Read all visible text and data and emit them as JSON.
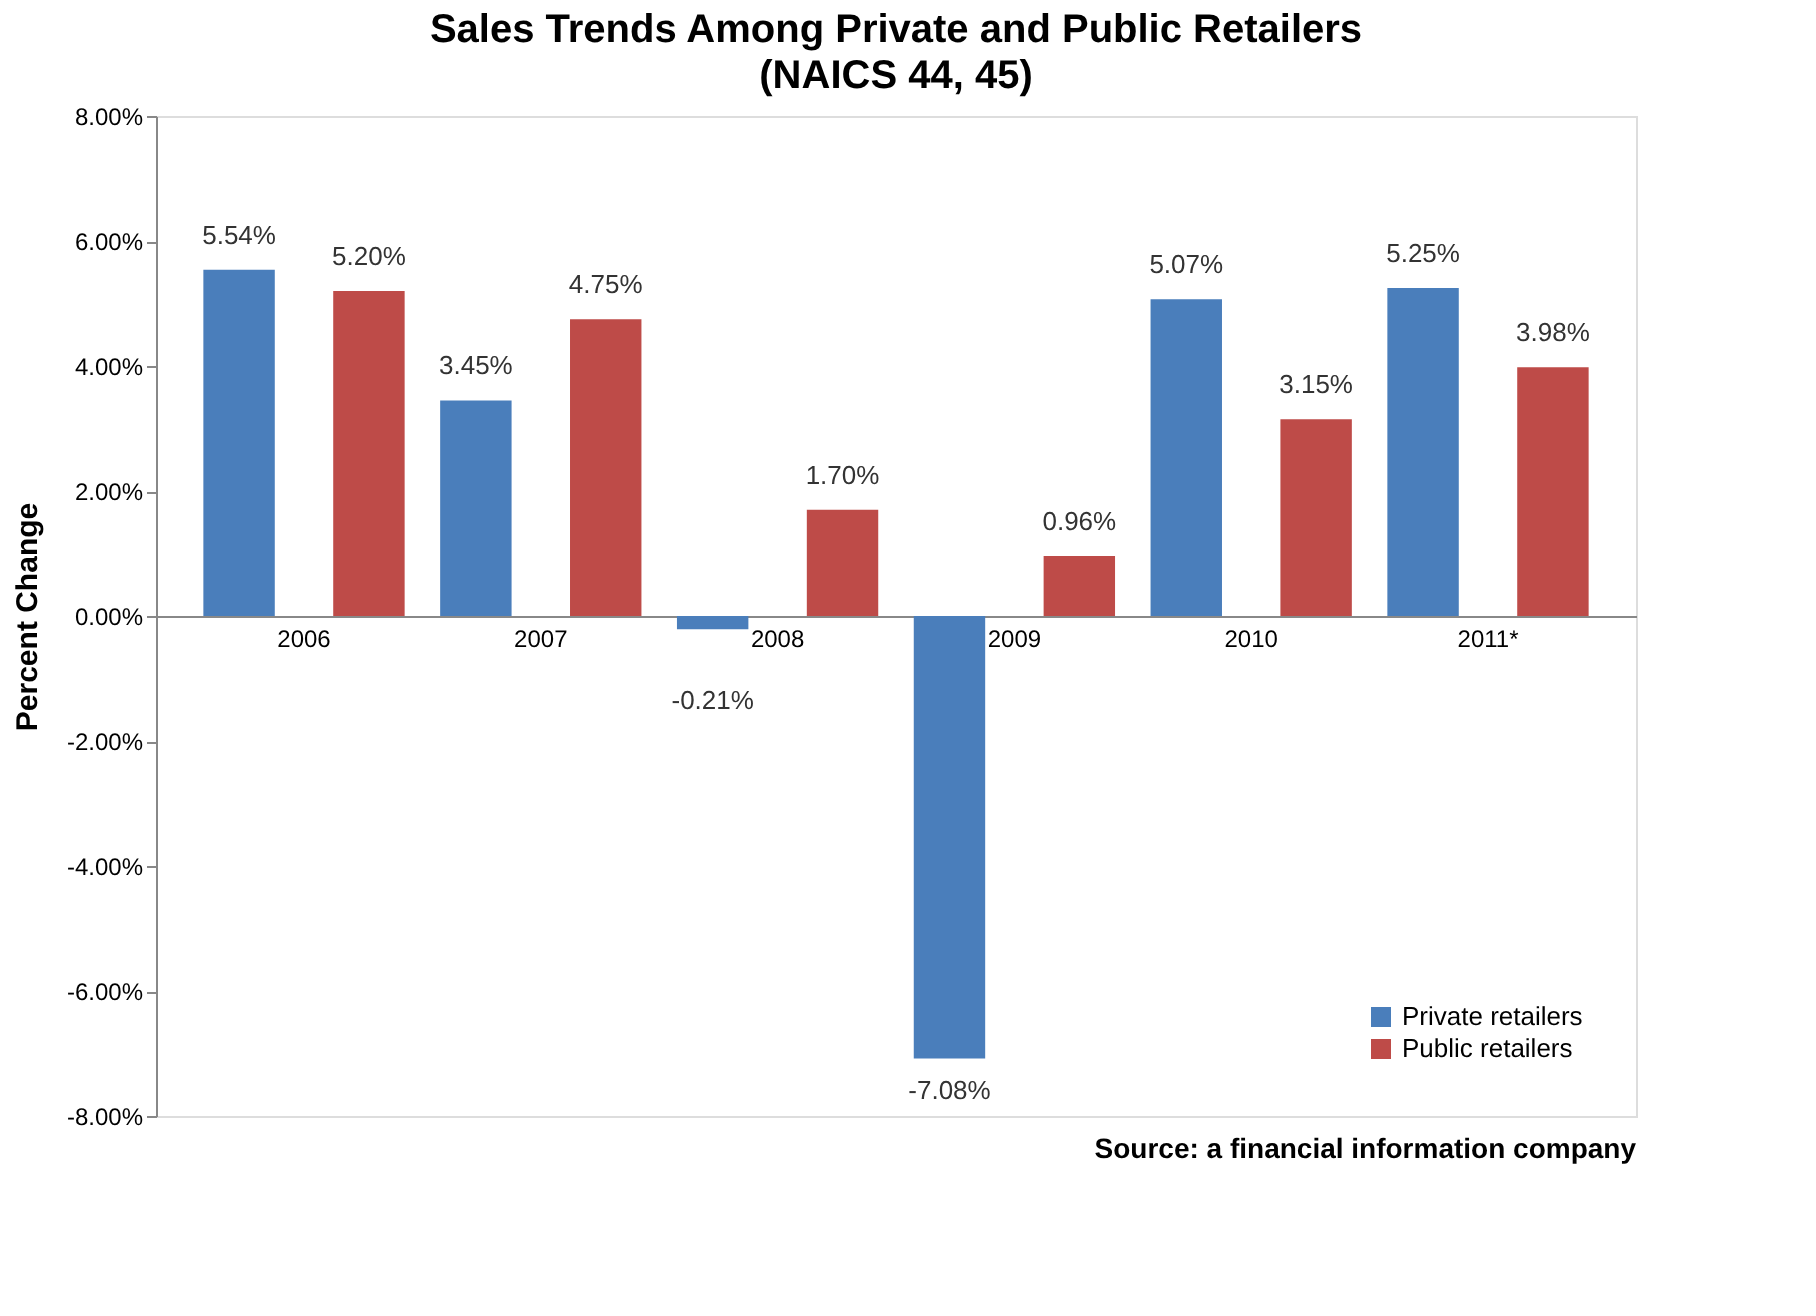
{
  "chart_data": {
    "type": "bar",
    "title": "Sales Trends Among Private and Public Retailers",
    "subtitle": "(NAICS 44, 45)",
    "ylabel": "Percent Change",
    "categories": [
      "2006",
      "2007",
      "2008",
      "2009",
      "2010",
      "2011*"
    ],
    "series": [
      {
        "name": "Private retailers",
        "color": "#4a7ebb",
        "values": [
          5.54,
          3.45,
          -0.21,
          -7.08,
          5.07,
          5.25
        ],
        "value_labels": [
          "5.54%",
          "3.45%",
          "-0.21%",
          "-7.08%",
          "5.07%",
          "5.25%"
        ]
      },
      {
        "name": "Public retailers",
        "color": "#be4b48",
        "values": [
          5.2,
          4.75,
          1.7,
          0.96,
          3.15,
          3.98
        ],
        "value_labels": [
          "5.20%",
          "4.75%",
          "1.70%",
          "0.96%",
          "3.15%",
          "3.98%"
        ]
      }
    ],
    "ylim": [
      -8,
      8
    ],
    "yticks": [
      {
        "value": -8,
        "label": "-8.00%"
      },
      {
        "value": -6,
        "label": "-6.00%"
      },
      {
        "value": -4,
        "label": "-4.00%"
      },
      {
        "value": -2,
        "label": "-2.00%"
      },
      {
        "value": 0,
        "label": "0.00%"
      },
      {
        "value": 2,
        "label": "2.00%"
      },
      {
        "value": 4,
        "label": "4.00%"
      },
      {
        "value": 6,
        "label": "6.00%"
      },
      {
        "value": 8,
        "label": "8.00%"
      }
    ],
    "grid": false,
    "legend": "bottom right",
    "annotations": [
      "Source: a financial information company"
    ]
  }
}
